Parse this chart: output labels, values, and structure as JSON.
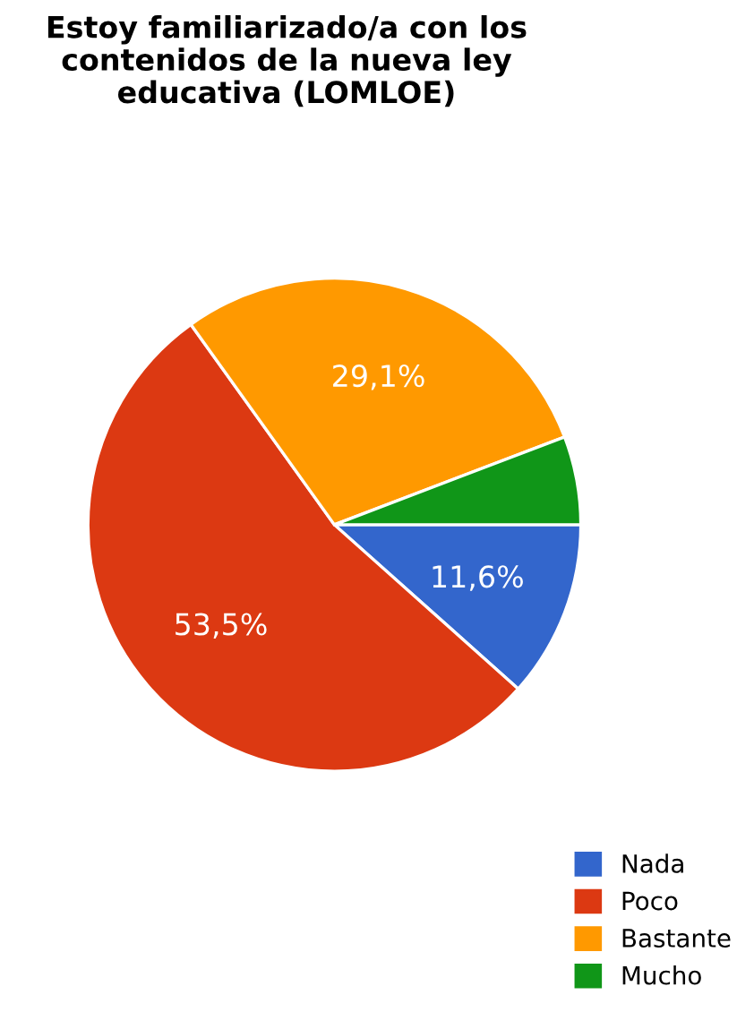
{
  "chart_data": {
    "type": "pie",
    "title": "Estoy familiarizado/a con los\ncontenidos de la nueva ley\neducativa (LOMLOE)",
    "categories": [
      "Nada",
      "Poco",
      "Bastante",
      "Mucho"
    ],
    "values": [
      11.6,
      53.5,
      29.1,
      5.8
    ],
    "value_labels": [
      "11,6%",
      "53,5%",
      "29,1%",
      null
    ],
    "colors": [
      "#3366cc",
      "#dc3912",
      "#ff9900",
      "#109618"
    ],
    "legend": "bottom right"
  }
}
